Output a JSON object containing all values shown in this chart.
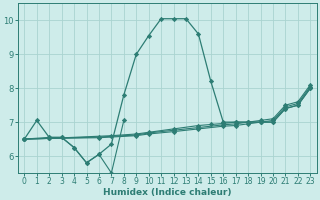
{
  "xlabel": "Humidex (Indice chaleur)",
  "xlim": [
    -0.5,
    23.5
  ],
  "ylim": [
    5.5,
    10.5
  ],
  "xticks": [
    0,
    1,
    2,
    3,
    4,
    5,
    6,
    7,
    8,
    9,
    10,
    11,
    12,
    13,
    14,
    15,
    16,
    17,
    18,
    19,
    20,
    21,
    22,
    23
  ],
  "yticks": [
    6,
    7,
    8,
    9,
    10
  ],
  "bg_color": "#ceecea",
  "grid_color": "#aad4d0",
  "line_color": "#2d7d74",
  "line1": {
    "x": [
      0,
      1,
      2,
      3,
      4,
      5,
      6,
      7,
      8,
      9,
      10,
      11,
      12,
      13,
      14,
      15,
      16,
      17,
      18,
      19,
      20,
      21,
      22,
      23
    ],
    "y": [
      6.5,
      7.05,
      6.55,
      6.55,
      6.25,
      5.8,
      6.05,
      6.35,
      7.8,
      9.0,
      9.55,
      10.05,
      10.05,
      10.05,
      9.6,
      8.2,
      7.0,
      7.0,
      7.0,
      7.0,
      7.0,
      7.4,
      7.5,
      8.0
    ]
  },
  "line2": {
    "x": [
      0,
      2,
      3,
      4,
      5,
      6,
      7,
      8
    ],
    "y": [
      6.5,
      6.55,
      6.55,
      6.25,
      5.8,
      6.05,
      5.5,
      7.05
    ]
  },
  "line3": {
    "x": [
      0,
      2,
      6,
      9,
      10,
      12,
      14,
      16,
      17,
      18,
      19,
      20,
      21,
      22,
      23
    ],
    "y": [
      6.5,
      6.52,
      6.54,
      6.6,
      6.65,
      6.72,
      6.8,
      6.88,
      6.9,
      6.95,
      7.0,
      7.0,
      7.4,
      7.5,
      8.0
    ]
  },
  "line4": {
    "x": [
      0,
      2,
      6,
      9,
      10,
      12,
      14,
      16,
      17,
      18,
      19,
      20,
      21,
      22,
      23
    ],
    "y": [
      6.5,
      6.52,
      6.56,
      6.62,
      6.68,
      6.76,
      6.84,
      6.92,
      6.95,
      7.0,
      7.0,
      7.05,
      7.45,
      7.55,
      8.05
    ]
  },
  "line5": {
    "x": [
      0,
      2,
      7,
      9,
      10,
      12,
      14,
      15,
      16,
      17,
      18,
      19,
      20,
      21,
      22,
      23
    ],
    "y": [
      6.5,
      6.52,
      6.6,
      6.65,
      6.7,
      6.8,
      6.9,
      6.93,
      6.96,
      7.0,
      7.0,
      7.05,
      7.1,
      7.5,
      7.6,
      8.1
    ]
  }
}
